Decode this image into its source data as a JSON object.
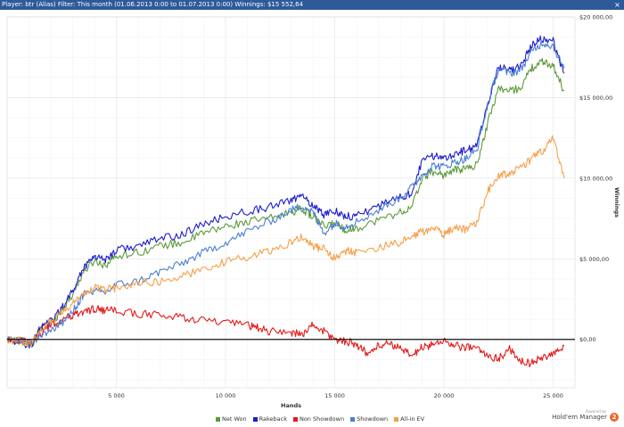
{
  "window": {
    "title": "Player: btr (Alias) Filter: This month (01.06.2013 0:00 to 01.07.2013 0:00) Winnings: $15 552,64",
    "close_glyph": "×",
    "close_icon": "close-icon"
  },
  "brand": {
    "powered_by": "Powered by",
    "name": "Hold'em Manager",
    "logo_glyph": "2"
  },
  "chart_data": {
    "type": "line",
    "xlabel": "Hands",
    "ylabel": "Winnings",
    "xlim": [
      0,
      26000
    ],
    "ylim": [
      -3000,
      20000
    ],
    "x_ticks": [
      5000,
      10000,
      15000,
      20000,
      25000
    ],
    "x_tick_labels": [
      "5 000",
      "10 000",
      "15 000",
      "20 000",
      "25 000"
    ],
    "y_ticks": [
      0,
      5000,
      10000,
      15000,
      20000
    ],
    "y_tick_labels": [
      "$0,00",
      "$5 000,00",
      "$10 000,00",
      "$15 000,00",
      "$20 000,00"
    ],
    "grid": true,
    "legend_position": "bottom-center",
    "series": [
      {
        "name": "Net Won",
        "color": "#5d9b3a",
        "x": [
          0,
          600,
          1100,
          1500,
          2000,
          2500,
          3000,
          3500,
          4000,
          4500,
          5000,
          6000,
          7000,
          8000,
          9000,
          10000,
          11000,
          12000,
          13000,
          13500,
          14000,
          14500,
          15000,
          15500,
          16000,
          17000,
          18000,
          18500,
          19000,
          19500,
          20000,
          20500,
          21000,
          21500,
          22000,
          22500,
          23000,
          23500,
          24000,
          24500,
          25000,
          25500
        ],
        "y": [
          0,
          -150,
          -400,
          600,
          1000,
          1800,
          2800,
          4200,
          4900,
          4600,
          5200,
          5400,
          5800,
          6000,
          6600,
          7000,
          7300,
          7500,
          7900,
          8100,
          7600,
          7000,
          7200,
          6800,
          6900,
          7400,
          7900,
          8100,
          10000,
          10400,
          10200,
          10500,
          10600,
          10800,
          13400,
          15600,
          15400,
          15600,
          16800,
          17200,
          17000,
          15400
        ]
      },
      {
        "name": "Rakeback",
        "color": "#1d1ecf",
        "x": [
          0,
          600,
          1100,
          1500,
          2000,
          2500,
          3000,
          3500,
          4000,
          4500,
          5000,
          6000,
          7000,
          8000,
          9000,
          10000,
          11000,
          12000,
          13000,
          13500,
          14000,
          14500,
          15000,
          15500,
          16000,
          17000,
          18000,
          18500,
          19000,
          19500,
          20000,
          20500,
          21000,
          21500,
          22000,
          22500,
          23000,
          23500,
          24000,
          24500,
          25000,
          25500
        ],
        "y": [
          0,
          -150,
          -400,
          650,
          1100,
          1950,
          3000,
          4450,
          5200,
          4950,
          5550,
          5800,
          6250,
          6500,
          7150,
          7600,
          7950,
          8200,
          8650,
          8850,
          8350,
          7750,
          8000,
          7600,
          7700,
          8250,
          8800,
          9050,
          11000,
          11400,
          11250,
          11550,
          11700,
          11950,
          14600,
          16850,
          16700,
          16950,
          18200,
          18650,
          18500,
          16500
        ]
      },
      {
        "name": "Non Showdown",
        "color": "#e41a1a",
        "x": [
          0,
          600,
          1100,
          1500,
          2000,
          2500,
          3000,
          3500,
          4000,
          4500,
          5000,
          6000,
          7000,
          8000,
          9000,
          10000,
          11000,
          11500,
          12000,
          13000,
          13500,
          14000,
          14500,
          15000,
          15500,
          16000,
          16500,
          17000,
          17500,
          18000,
          18500,
          19000,
          19500,
          20000,
          20500,
          21000,
          21500,
          22000,
          22500,
          23000,
          23500,
          24000,
          24500,
          25000,
          25500
        ],
        "y": [
          0,
          -100,
          -250,
          300,
          900,
          1200,
          1500,
          1700,
          1900,
          1800,
          1750,
          1600,
          1500,
          1350,
          1200,
          1000,
          900,
          700,
          500,
          450,
          300,
          900,
          500,
          0,
          -100,
          -300,
          -900,
          -400,
          -200,
          -600,
          -1000,
          -500,
          -300,
          -50,
          -400,
          -500,
          -550,
          -1000,
          -1200,
          -600,
          -1300,
          -1500,
          -1100,
          -1000,
          -400
        ]
      },
      {
        "name": "Showdown",
        "color": "#4b7fd1",
        "x": [
          0,
          600,
          1100,
          1500,
          2000,
          2500,
          3000,
          3500,
          4000,
          4500,
          5000,
          6000,
          7000,
          8000,
          9000,
          10000,
          11000,
          12000,
          13000,
          13500,
          14000,
          14500,
          15000,
          15500,
          16000,
          17000,
          18000,
          18500,
          19000,
          19500,
          20000,
          20500,
          21000,
          21500,
          22000,
          22500,
          23000,
          23500,
          24000,
          24500,
          25000,
          25500
        ],
        "y": [
          0,
          -50,
          -200,
          200,
          600,
          1000,
          1700,
          2800,
          3000,
          2900,
          3400,
          3600,
          4200,
          4700,
          5400,
          6000,
          6700,
          7300,
          8000,
          8300,
          7900,
          6600,
          7200,
          7000,
          7300,
          8000,
          8800,
          9400,
          10200,
          10800,
          10700,
          11000,
          11200,
          11700,
          14600,
          16800,
          16500,
          16700,
          17800,
          18400,
          18200,
          16800
        ]
      },
      {
        "name": "All-in EV",
        "color": "#f5a04a",
        "x": [
          0,
          600,
          1100,
          1500,
          2000,
          2500,
          3000,
          3500,
          4000,
          4500,
          5000,
          6000,
          7000,
          8000,
          9000,
          10000,
          11000,
          12000,
          13000,
          13500,
          14000,
          14500,
          15000,
          15500,
          16000,
          17000,
          18000,
          18500,
          19000,
          19500,
          20000,
          20500,
          21000,
          21500,
          22000,
          22500,
          23000,
          23500,
          24000,
          24500,
          25000,
          25500
        ],
        "y": [
          0,
          -100,
          -300,
          500,
          1200,
          1600,
          2200,
          2800,
          3200,
          3100,
          3200,
          3500,
          3600,
          3900,
          4400,
          4800,
          5100,
          5500,
          6000,
          6400,
          5800,
          5600,
          5000,
          5500,
          5400,
          5700,
          6000,
          6300,
          6700,
          6900,
          6500,
          7000,
          6800,
          7300,
          9200,
          10200,
          10300,
          10600,
          11200,
          11700,
          12500,
          10000
        ]
      }
    ]
  }
}
